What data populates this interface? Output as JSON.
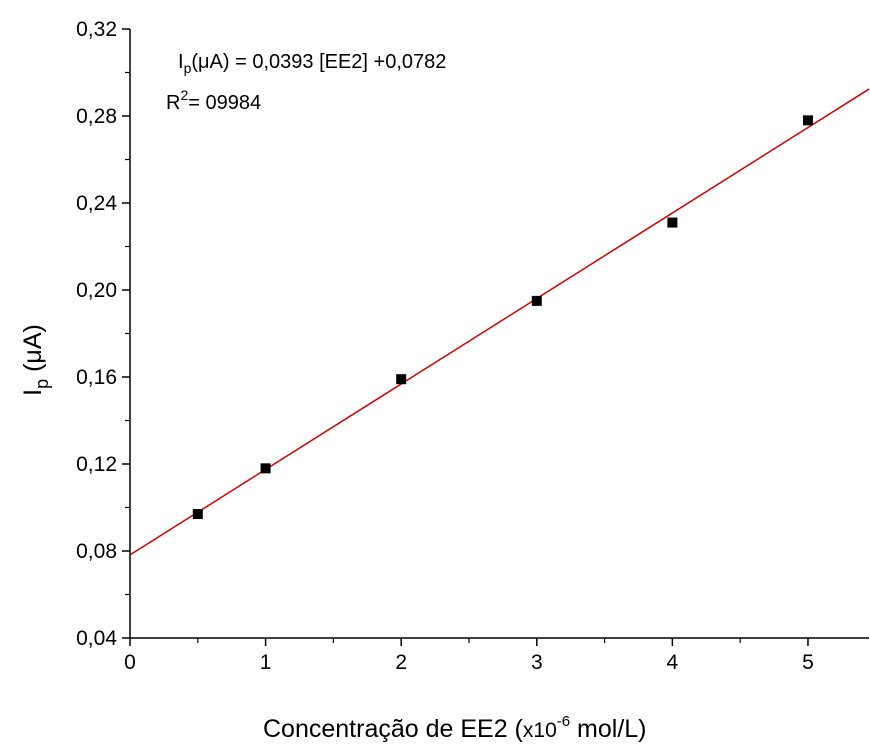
{
  "chart_data": {
    "type": "scatter",
    "xlabel": {
      "main": "Concentração de EE2 (",
      "times": "x10",
      "exp": "-6",
      "unit": " mol/L)"
    },
    "ylabel": {
      "main": "I",
      "sub": "p",
      "unit": " (μA)"
    },
    "xlim": [
      0,
      5.45
    ],
    "ylim": [
      0.04,
      0.32
    ],
    "xticks": [
      0,
      1,
      2,
      3,
      4,
      5
    ],
    "xtick_labels": [
      "0",
      "1",
      "2",
      "3",
      "4",
      "5"
    ],
    "yticks": [
      0.04,
      0.08,
      0.12,
      0.16,
      0.2,
      0.24,
      0.28,
      0.32
    ],
    "ytick_labels": [
      "0,04",
      "0,08",
      "0,12",
      "0,16",
      "0,20",
      "0,24",
      "0,28",
      "0,32"
    ],
    "grid": false,
    "points": [
      {
        "x": 0.5,
        "y": 0.097
      },
      {
        "x": 1,
        "y": 0.118
      },
      {
        "x": 2,
        "y": 0.159
      },
      {
        "x": 3,
        "y": 0.195
      },
      {
        "x": 4,
        "y": 0.231
      },
      {
        "x": 5,
        "y": 0.278
      }
    ],
    "fit": {
      "slope": 0.0393,
      "intercept": 0.0782,
      "color": "#d40000"
    },
    "marker_color": "#000000",
    "annotations": {
      "equation": {
        "pre": "I",
        "sub": "p",
        "text": "(μA) = 0,0393 [EE2] +0,0782"
      },
      "r2": {
        "pre": "R",
        "sup": "2",
        "text": "= 09984"
      }
    }
  }
}
